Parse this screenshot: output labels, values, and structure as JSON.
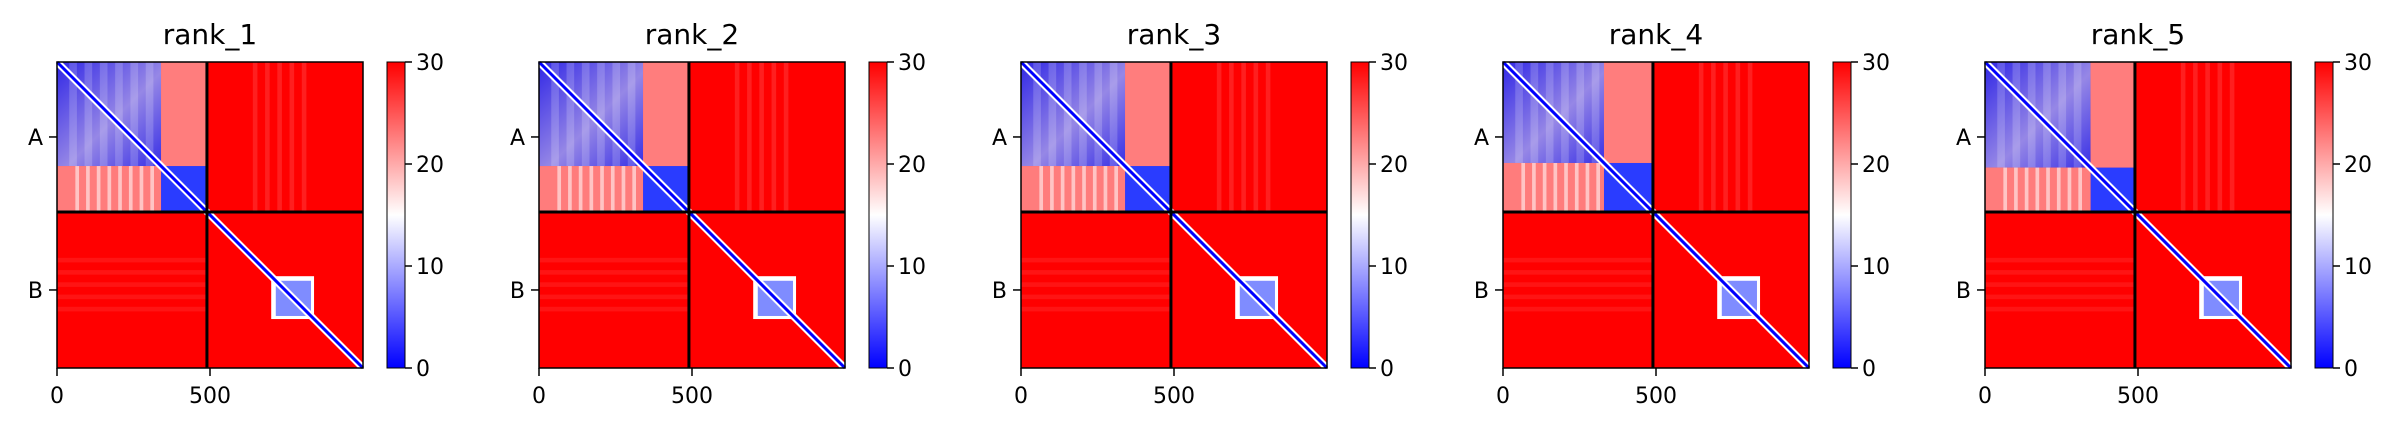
{
  "chart_data": {
    "type": "heatmap",
    "colormap": {
      "name": "bwr",
      "low_color": "#0000ff",
      "mid_color": "#ffffff",
      "high_color": "#ff0000"
    },
    "colorbar": {
      "range": [
        0,
        30
      ],
      "ticks": [
        "0",
        "10",
        "20",
        "30"
      ]
    },
    "x_ticks": [
      "0",
      "500"
    ],
    "y_ticks": [
      "A",
      "B"
    ],
    "x_range": [
      0,
      1000
    ],
    "chain_boundary": 490,
    "panels": [
      {
        "title": "rank_1"
      },
      {
        "title": "rank_2"
      },
      {
        "title": "rank_3"
      },
      {
        "title": "rank_4"
      },
      {
        "title": "rank_5"
      }
    ]
  }
}
